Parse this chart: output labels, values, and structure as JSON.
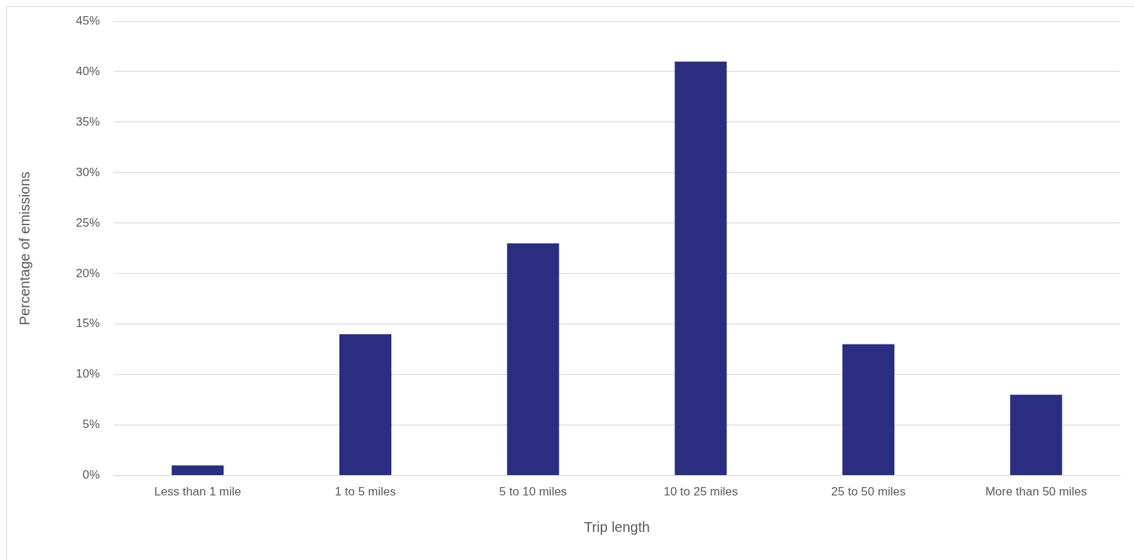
{
  "chart_data": {
    "type": "bar",
    "xlabel": "Trip length",
    "ylabel": "Percentage of emissions",
    "categories": [
      "Less than 1 mile",
      "1 to 5 miles",
      "5 to 10 miles",
      "10 to 25 miles",
      "25 to 50 miles",
      "More than 50 miles"
    ],
    "values": [
      1,
      14,
      23,
      41,
      13,
      8
    ],
    "color": "#2b2d80",
    "ylim": [
      0,
      45
    ],
    "yticks": [
      {
        "value": 0,
        "label": "0%"
      },
      {
        "value": 5,
        "label": "5%"
      },
      {
        "value": 10,
        "label": "10%"
      },
      {
        "value": 15,
        "label": "15%"
      },
      {
        "value": 20,
        "label": "20%"
      },
      {
        "value": 25,
        "label": "25%"
      },
      {
        "value": 30,
        "label": "30%"
      },
      {
        "value": 35,
        "label": "35%"
      },
      {
        "value": 40,
        "label": "40%"
      },
      {
        "value": 45,
        "label": "45%"
      }
    ],
    "grid": "y",
    "legend": false
  }
}
